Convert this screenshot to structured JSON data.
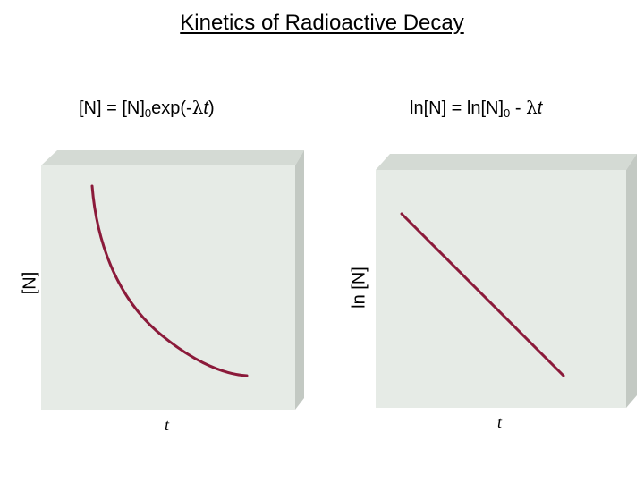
{
  "title": "Kinetics of Radioactive Decay",
  "left_panel": {
    "eq_prefix": "[N] = [N]",
    "eq_sub": "0",
    "eq_mid": "exp(-",
    "eq_lambda": "λ",
    "eq_t": "t",
    "eq_close": ")",
    "ylabel": "[N]",
    "xlabel": "t"
  },
  "right_panel": {
    "eq_prefix": "ln[N] = ln[N]",
    "eq_sub": "0",
    "eq_mid": " - ",
    "eq_lambda": "λ",
    "eq_t": "t",
    "ylabel": "ln [N]",
    "xlabel": "t"
  },
  "colors": {
    "curve": "#8b1a3a",
    "panel_face": "#e6ebe6",
    "panel_top": "#d4dad4",
    "panel_side": "#c3c9c3"
  }
}
